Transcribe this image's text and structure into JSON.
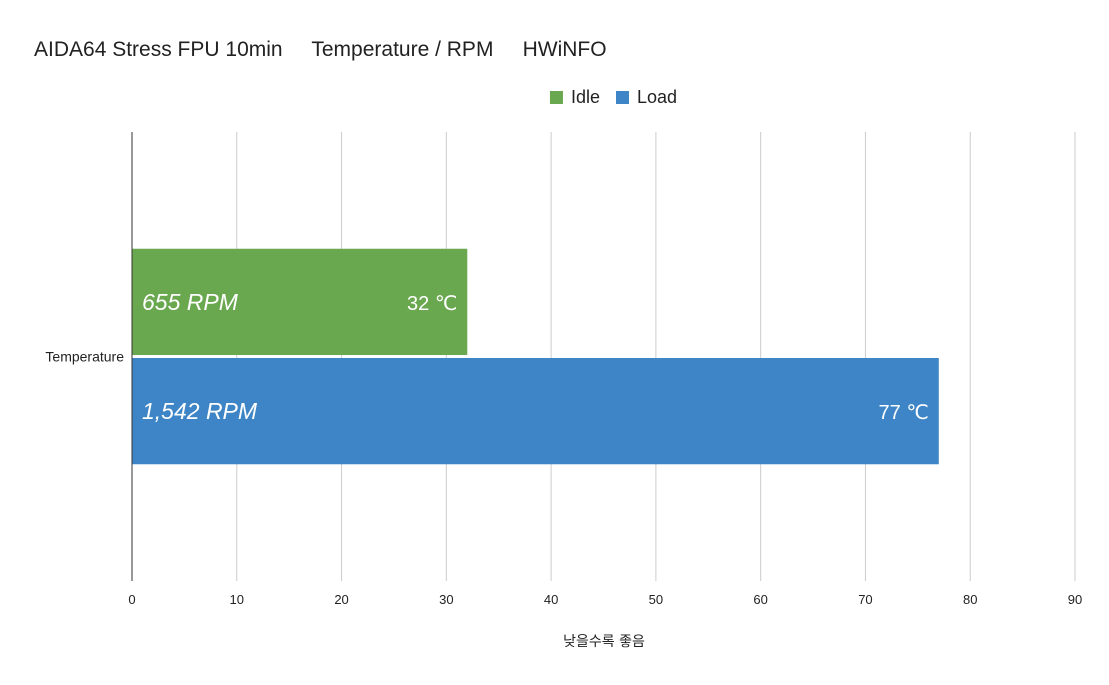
{
  "chart_data": {
    "type": "bar",
    "orientation": "horizontal",
    "title": "AIDA64 Stress FPU 10min     Temperature / RPM     HWiNFO",
    "categories": [
      "Temperature"
    ],
    "series": [
      {
        "name": "Idle",
        "values": [
          32
        ],
        "color": "#6aa84f",
        "rpm_label": "655 RPM",
        "value_label": "32 ℃"
      },
      {
        "name": "Load",
        "values": [
          77
        ],
        "color": "#3d85c6",
        "rpm_label": "1,542 RPM",
        "value_label": "77 ℃"
      }
    ],
    "xlabel": "낮을수록 좋음",
    "ylabel": "",
    "xlim": [
      0,
      90
    ],
    "xticks": [
      0,
      10,
      20,
      30,
      40,
      50,
      60,
      70,
      80,
      90
    ],
    "grid": true,
    "legend_position": "top-center"
  }
}
